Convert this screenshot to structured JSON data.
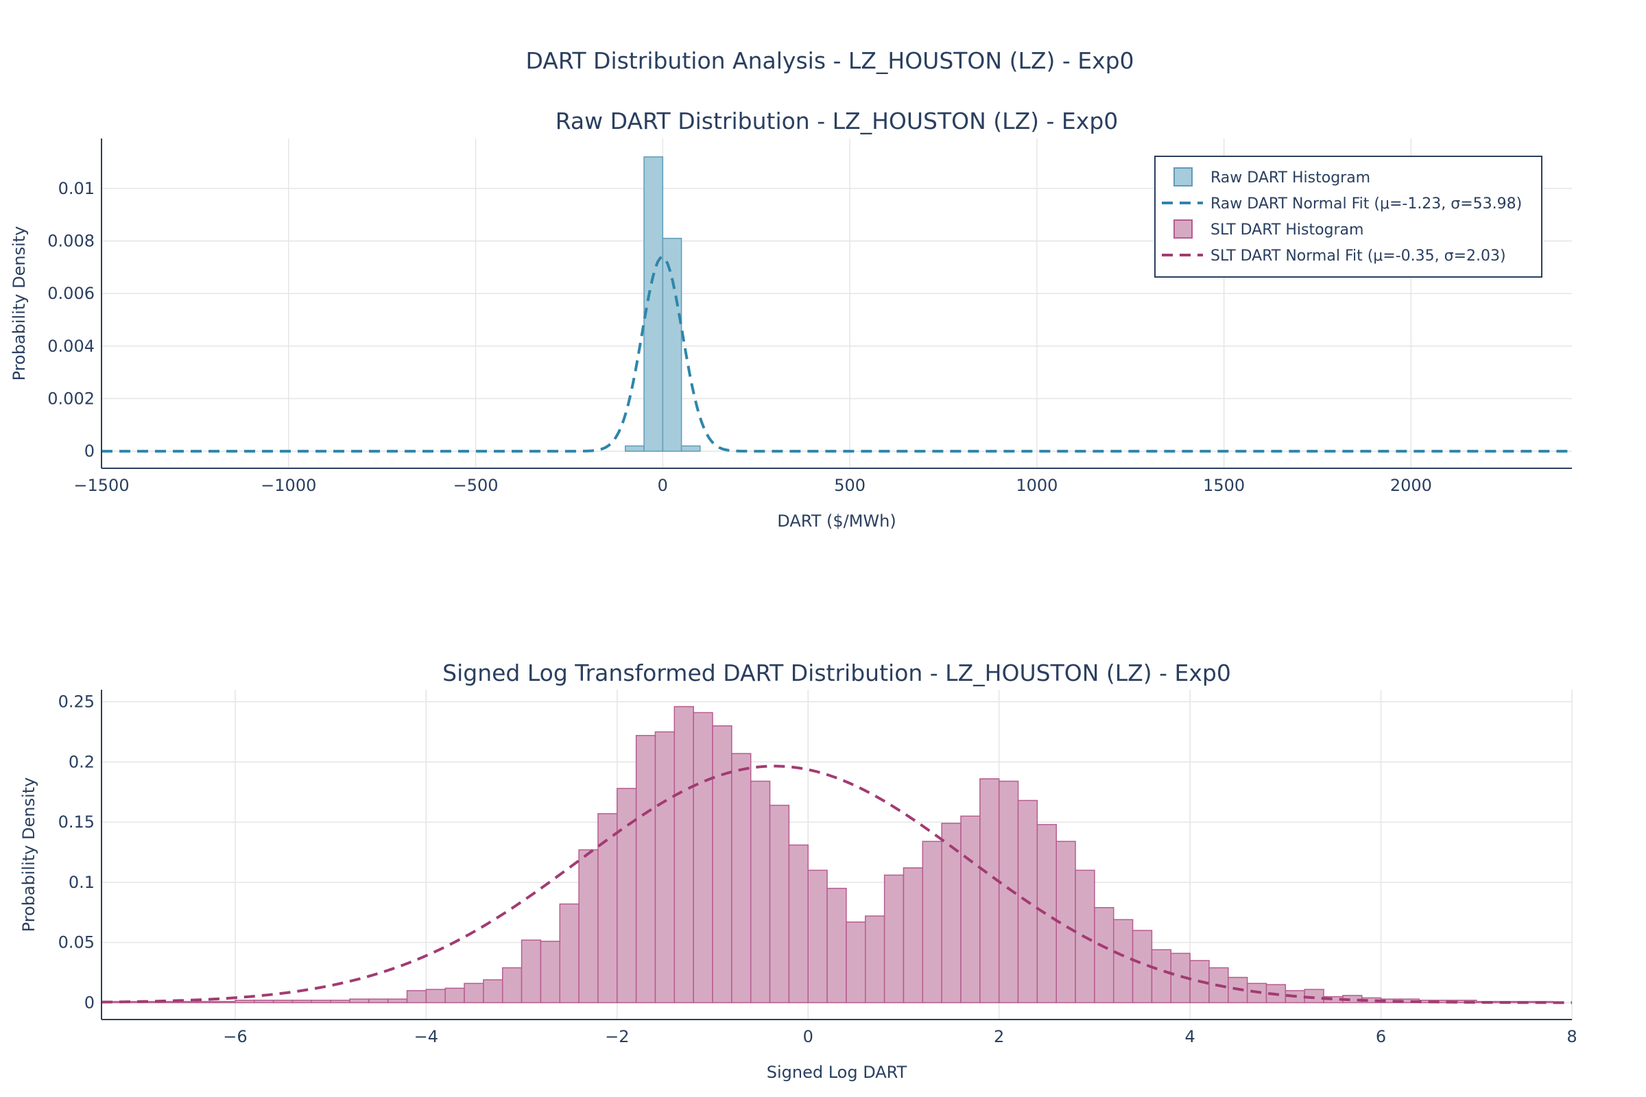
{
  "title": "DART Distribution Analysis - LZ_HOUSTON (LZ) - Exp0",
  "colors": {
    "raw_fill": "#a6cbdb",
    "raw_edge": "#5f9cb8",
    "raw_line": "#2e86ab",
    "slt_fill": "#d6a9c3",
    "slt_edge": "#b65c8e",
    "slt_line": "#a23b72"
  },
  "legend": {
    "placement": "top-right",
    "items": [
      {
        "label": "Raw DART Histogram",
        "kind": "bar",
        "series": "raw"
      },
      {
        "label": "Raw DART Normal Fit (μ=-1.23, σ=53.98)",
        "kind": "dash",
        "series": "raw"
      },
      {
        "label": "SLT DART Histogram",
        "kind": "bar",
        "series": "slt"
      },
      {
        "label": "SLT DART Normal Fit (μ=-0.35, σ=2.03)",
        "kind": "dash",
        "series": "slt"
      }
    ]
  },
  "chart_data": [
    {
      "type": "bar",
      "title": "Raw DART Distribution - LZ_HOUSTON (LZ) - Exp0",
      "xlabel": "DART ($/MWh)",
      "ylabel": "Probability Density",
      "xlim": [
        -1500,
        2430
      ],
      "ylim": [
        -0.00065,
        0.0119
      ],
      "xticks": [
        -1500,
        -1000,
        -500,
        0,
        500,
        1000,
        1500,
        2000
      ],
      "xtick_labels": [
        "−1500",
        "−1000",
        "−500",
        "0",
        "500",
        "1000",
        "1500",
        "2000"
      ],
      "yticks": [
        0,
        0.002,
        0.004,
        0.006,
        0.008,
        0.01
      ],
      "ytick_labels": [
        "0",
        "0.002",
        "0.004",
        "0.006",
        "0.008",
        "0.01"
      ],
      "grid": true,
      "histogram": {
        "name": "Raw DART Histogram",
        "bin_width": 50,
        "bins": [
          {
            "x0": -100,
            "x1": -50,
            "density": 0.0002
          },
          {
            "x0": -50,
            "x1": 0,
            "density": 0.0112
          },
          {
            "x0": 0,
            "x1": 50,
            "density": 0.0081
          },
          {
            "x0": 50,
            "x1": 100,
            "density": 0.0002
          }
        ]
      },
      "fit": {
        "name": "Raw DART Normal Fit (μ=-1.23, σ=53.98)",
        "mu": -1.23,
        "sigma": 53.98
      }
    },
    {
      "type": "bar",
      "title": "Signed Log Transformed DART Distribution - LZ_HOUSTON (LZ) - Exp0",
      "xlabel": "Signed Log DART",
      "ylabel": "Probability Density",
      "xlim": [
        -7.4,
        8.0
      ],
      "ylim": [
        -0.014,
        0.26
      ],
      "xticks": [
        -6,
        -4,
        -2,
        0,
        2,
        4,
        6,
        8
      ],
      "xtick_labels": [
        "−6",
        "−4",
        "−2",
        "0",
        "2",
        "4",
        "6",
        "8"
      ],
      "yticks": [
        0,
        0.05,
        0.1,
        0.15,
        0.2,
        0.25
      ],
      "ytick_labels": [
        "0",
        "0.05",
        "0.1",
        "0.15",
        "0.2",
        "0.25"
      ],
      "grid": true,
      "histogram": {
        "name": "SLT DART Histogram",
        "bin_start": -7.4,
        "bin_width": 0.2,
        "densities": [
          0.001,
          0.001,
          0.001,
          0.001,
          0.001,
          0.001,
          0.001,
          0.002,
          0.002,
          0.002,
          0.002,
          0.002,
          0.002,
          0.003,
          0.003,
          0.003,
          0.01,
          0.011,
          0.012,
          0.016,
          0.019,
          0.029,
          0.052,
          0.051,
          0.082,
          0.127,
          0.157,
          0.178,
          0.222,
          0.225,
          0.246,
          0.241,
          0.23,
          0.207,
          0.184,
          0.164,
          0.131,
          0.11,
          0.095,
          0.067,
          0.072,
          0.106,
          0.112,
          0.134,
          0.149,
          0.155,
          0.186,
          0.184,
          0.168,
          0.148,
          0.134,
          0.11,
          0.079,
          0.069,
          0.06,
          0.044,
          0.041,
          0.035,
          0.029,
          0.021,
          0.016,
          0.015,
          0.01,
          0.011,
          0.005,
          0.006,
          0.004,
          0.003,
          0.003,
          0.002,
          0.002,
          0.002,
          0.001,
          0.001,
          0.001,
          0.001
        ]
      },
      "fit": {
        "name": "SLT DART Normal Fit (μ=-0.35, σ=2.03)",
        "mu": -0.35,
        "sigma": 2.03
      }
    }
  ]
}
